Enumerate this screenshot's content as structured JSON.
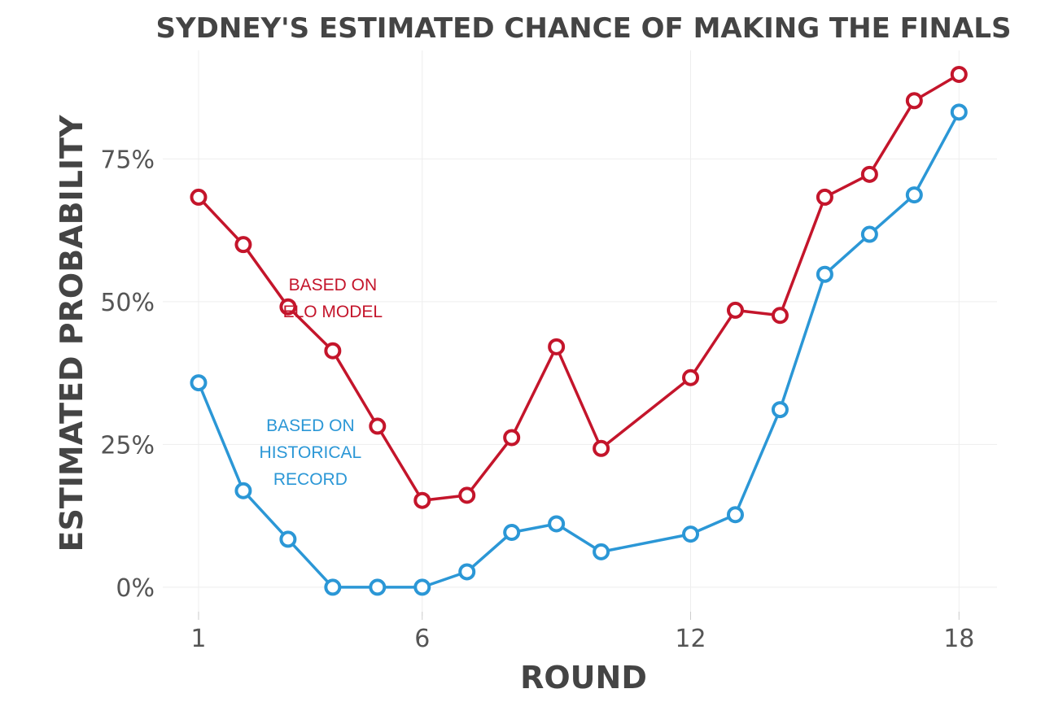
{
  "chart_data": {
    "type": "line",
    "title": "SYDNEY'S ESTIMATED CHANCE OF MAKING THE FINALS",
    "xlabel": "ROUND",
    "ylabel": "ESTIMATED PROBABILITY",
    "x": [
      1,
      2,
      3,
      4,
      5,
      6,
      7,
      8,
      9,
      10,
      12,
      13,
      14,
      15,
      16,
      17,
      18
    ],
    "xticks": [
      1,
      6,
      12,
      18
    ],
    "xtick_labels": [
      "1",
      "6",
      "12",
      "18"
    ],
    "xlim": [
      0.2,
      18.85
    ],
    "yticks": [
      0,
      0.25,
      0.5,
      0.75
    ],
    "ytick_labels": [
      "0%",
      "25%",
      "50%",
      "75%"
    ],
    "ylim": [
      -0.05,
      0.94
    ],
    "grid": true,
    "series": [
      {
        "key": "elo",
        "color": "#c4152b",
        "values": [
          0.683,
          0.6,
          0.491,
          0.414,
          0.282,
          0.152,
          0.161,
          0.262,
          0.421,
          0.243,
          0.367,
          0.485,
          0.476,
          0.683,
          0.723,
          0.852,
          0.898
        ]
      },
      {
        "key": "historical",
        "color": "#2b97d6",
        "values": [
          0.358,
          0.169,
          0.084,
          0.0,
          0.0,
          0.0,
          0.027,
          0.096,
          0.111,
          0.062,
          0.093,
          0.127,
          0.311,
          0.548,
          0.618,
          0.687,
          0.832
        ]
      }
    ],
    "annotations": [
      {
        "series": "elo",
        "lines": [
          "BASED ON",
          "ELO MODEL"
        ],
        "color": "#c4152b",
        "x": 4.0,
        "y": 0.52
      },
      {
        "series": "historical",
        "lines": [
          "BASED ON",
          "HISTORICAL",
          "RECORD"
        ],
        "color": "#2b97d6",
        "x": 3.5,
        "y": 0.273
      }
    ]
  }
}
